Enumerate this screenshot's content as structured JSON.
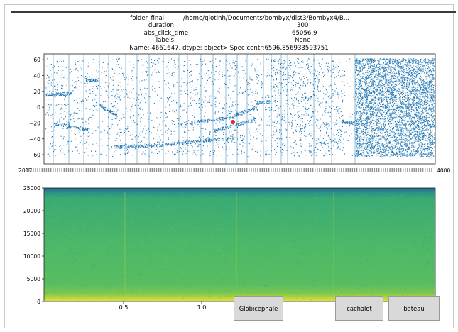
{
  "info": [
    {
      "key": "folder_final",
      "value": "/home/glotinh/Documents/bombyx/dist3/Bombyx4/B..."
    },
    {
      "key": "duration",
      "value": "300"
    },
    {
      "key": "abs_click_time",
      "value": "65056.9"
    },
    {
      "key": "labels",
      "value": "None"
    }
  ],
  "caption": "Name: 4661647, dtype: object> Spec centr:6596.856933593751",
  "scatter": {
    "y_ticks": [
      "60",
      "40",
      "20",
      "0",
      "−20",
      "−40",
      "−60"
    ],
    "x_tick_left": "2017",
    "x_tick_right": "4000"
  },
  "spectrogram": {
    "y_ticks": [
      "25000",
      "20000",
      "15000",
      "10000",
      "5000",
      "0"
    ],
    "x_ticks": [
      "0.5",
      "1.0"
    ]
  },
  "buttons": {
    "globicephale": "Globicephale",
    "cachalot": "cachalot",
    "bateau": "bateau"
  },
  "colors": {
    "scatter": "#1f77b4",
    "marker": "#e8262a",
    "spec_top": "#2b5b8c",
    "spec_mid": "#46b866",
    "spec_low": "#c8df3a"
  }
}
